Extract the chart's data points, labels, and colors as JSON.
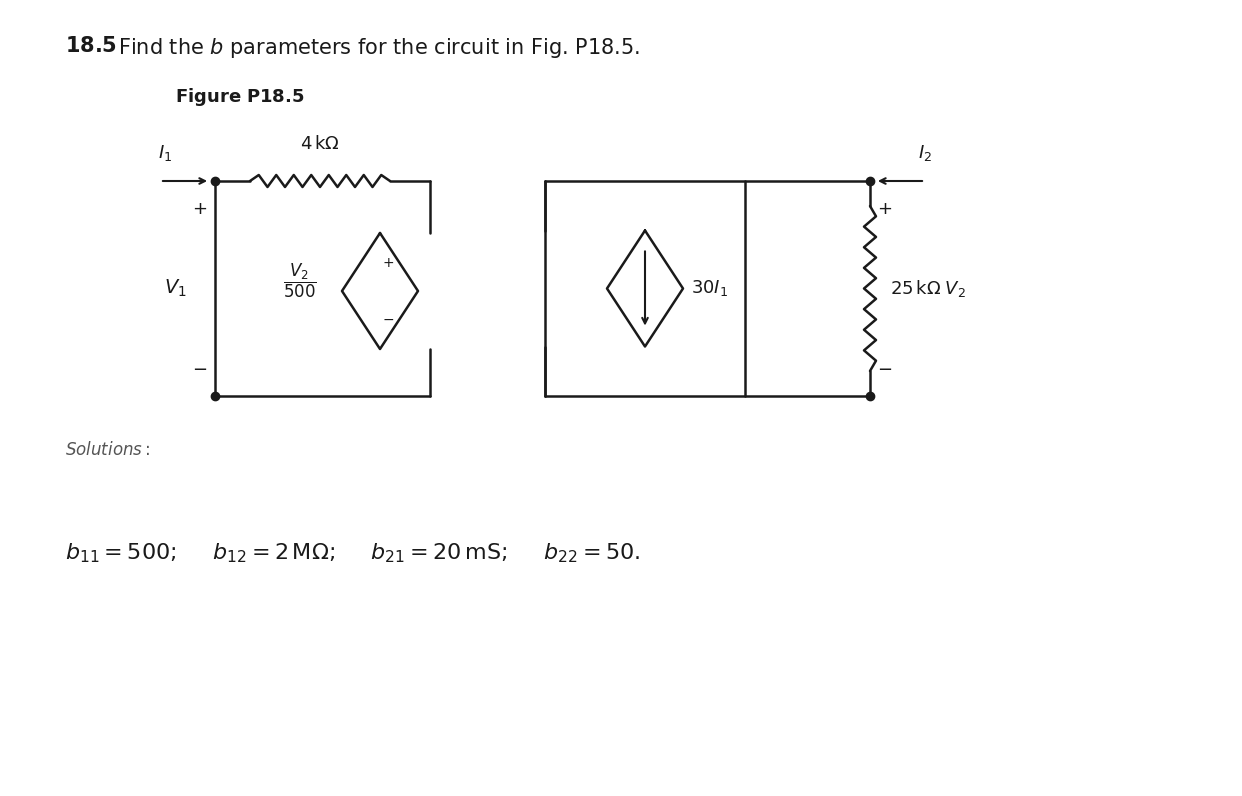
{
  "bg_color": "#ffffff",
  "line_color": "#1a1a1a",
  "text_color": "#333333",
  "gray_text": "#555555"
}
